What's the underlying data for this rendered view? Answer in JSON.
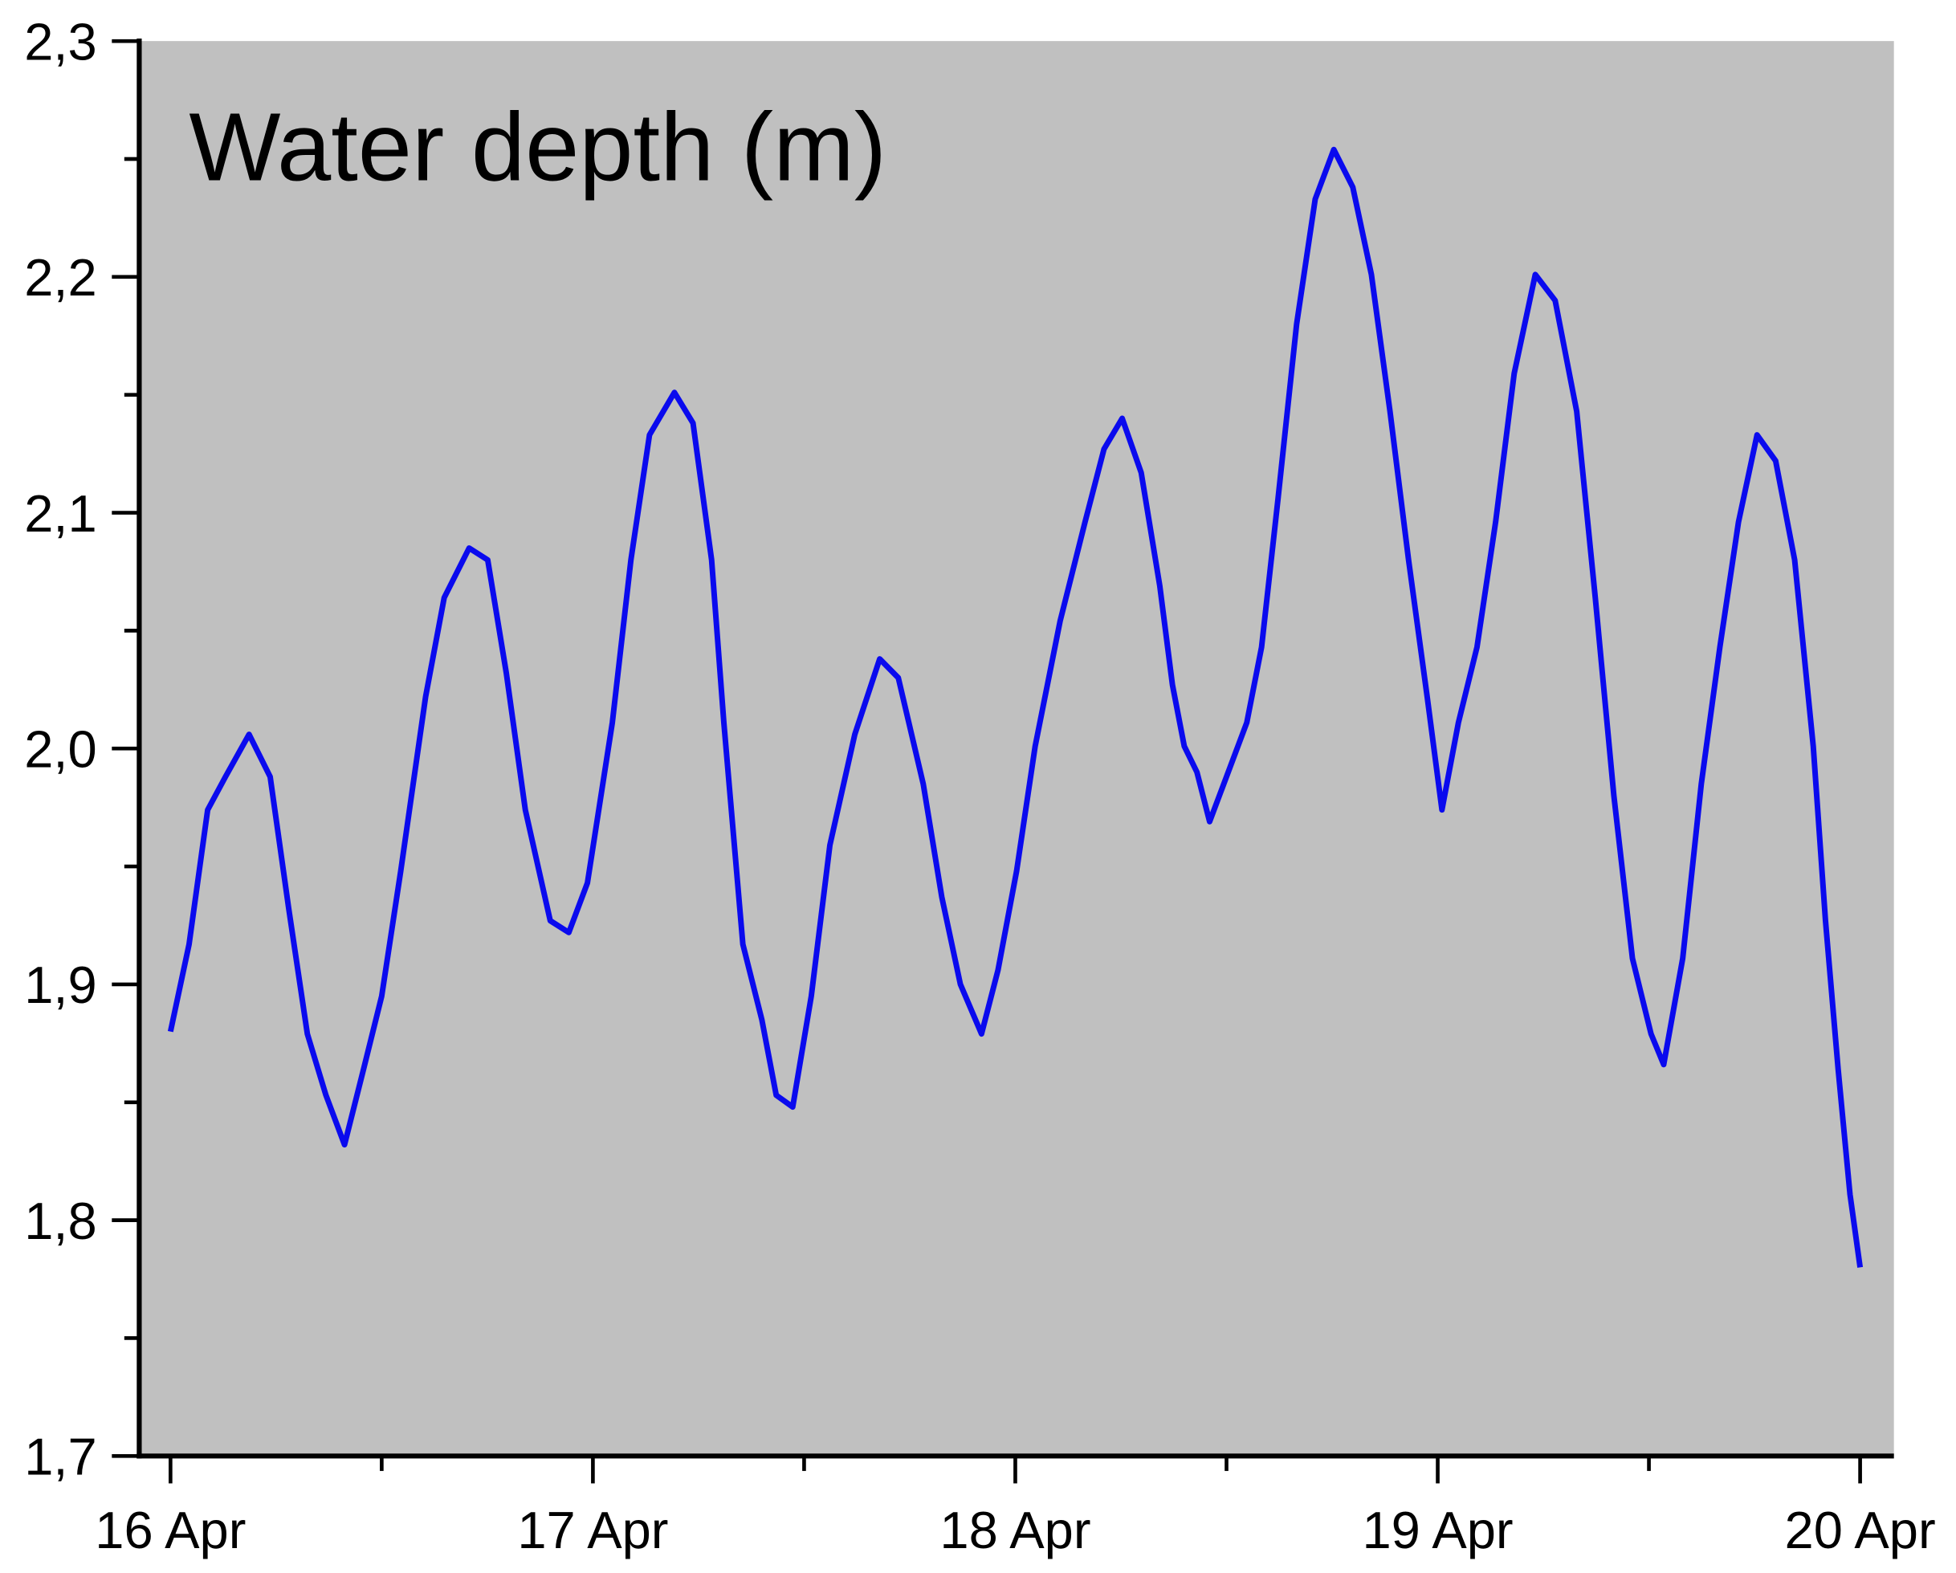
{
  "chart_data": {
    "type": "line",
    "title": "Water depth (m)",
    "x": [
      16.0,
      16.044,
      16.088,
      16.13,
      16.186,
      16.236,
      16.28,
      16.324,
      16.368,
      16.412,
      16.457,
      16.5,
      16.545,
      16.604,
      16.648,
      16.707,
      16.751,
      16.795,
      16.84,
      16.899,
      16.943,
      16.987,
      17.046,
      17.09,
      17.134,
      17.193,
      17.237,
      17.281,
      17.31,
      17.355,
      17.4,
      17.434,
      17.473,
      17.517,
      17.561,
      17.62,
      17.679,
      17.723,
      17.782,
      17.826,
      17.87,
      17.92,
      17.959,
      18.003,
      18.047,
      18.106,
      18.165,
      18.21,
      18.253,
      18.298,
      18.342,
      18.372,
      18.4,
      18.43,
      18.46,
      18.504,
      18.548,
      18.583,
      18.622,
      18.666,
      18.71,
      18.754,
      18.799,
      18.843,
      18.887,
      18.931,
      18.975,
      19.01,
      19.049,
      19.093,
      19.137,
      19.181,
      19.231,
      19.278,
      19.329,
      19.373,
      19.417,
      19.461,
      19.505,
      19.535,
      19.58,
      19.624,
      19.668,
      19.712,
      19.756,
      19.8,
      19.845,
      19.889,
      19.918,
      19.948,
      19.976,
      20.0
    ],
    "series": [
      {
        "name": "Water depth",
        "color": "#0a0aee",
        "values": [
          1.88,
          1.917,
          1.974,
          1.988,
          2.006,
          1.988,
          1.932,
          1.879,
          1.853,
          1.832,
          1.864,
          1.895,
          1.948,
          2.022,
          2.064,
          2.085,
          2.08,
          2.032,
          1.974,
          1.927,
          1.922,
          1.943,
          2.011,
          2.08,
          2.133,
          2.151,
          2.138,
          2.08,
          2.011,
          1.917,
          1.885,
          1.853,
          1.848,
          1.895,
          1.959,
          2.006,
          2.038,
          2.03,
          1.985,
          1.937,
          1.9,
          1.879,
          1.906,
          1.948,
          2.001,
          2.054,
          2.096,
          2.127,
          2.14,
          2.117,
          2.069,
          2.027,
          2.001,
          1.99,
          1.969,
          1.99,
          2.011,
          2.043,
          2.106,
          2.18,
          2.233,
          2.254,
          2.238,
          2.201,
          2.143,
          2.08,
          2.022,
          1.974,
          2.011,
          2.043,
          2.096,
          2.159,
          2.201,
          2.19,
          2.143,
          2.064,
          1.98,
          1.911,
          1.879,
          1.866,
          1.911,
          1.985,
          2.043,
          2.096,
          2.133,
          2.122,
          2.08,
          2.001,
          1.927,
          1.864,
          1.811,
          1.78
        ]
      }
    ],
    "xlim": [
      15.926,
      20.08
    ],
    "xticks": [
      {
        "value": 16,
        "label": "16 Apr"
      },
      {
        "value": 17,
        "label": "17 Apr"
      },
      {
        "value": 18,
        "label": "18 Apr"
      },
      {
        "value": 19,
        "label": "19 Apr"
      },
      {
        "value": 20,
        "label": "20 Apr"
      }
    ],
    "xminorticks": [
      16.5,
      17.5,
      18.5,
      19.5
    ],
    "ylim": [
      1.7,
      2.3
    ],
    "yticks": [
      {
        "value": 1.7,
        "label": "1,7"
      },
      {
        "value": 1.8,
        "label": "1,8"
      },
      {
        "value": 1.9,
        "label": "1,9"
      },
      {
        "value": 2.0,
        "label": "2,0"
      },
      {
        "value": 2.1,
        "label": "2,1"
      },
      {
        "value": 2.2,
        "label": "2,2"
      },
      {
        "value": 2.3,
        "label": "2,3"
      }
    ],
    "yminorticks": [
      1.75,
      1.85,
      1.95,
      2.05,
      2.15,
      2.25
    ],
    "background": "#c0c0c0"
  }
}
